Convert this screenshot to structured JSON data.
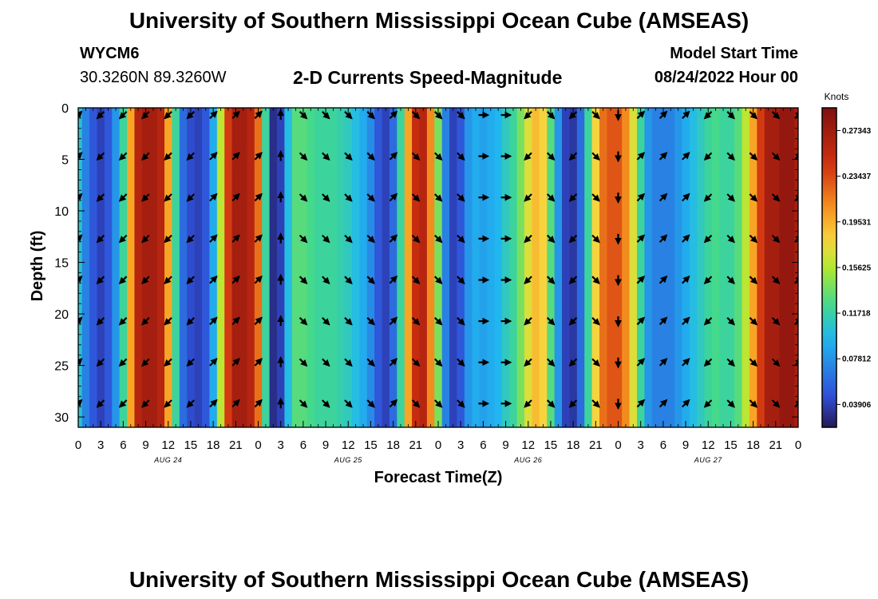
{
  "header": {
    "title": "University of Southern Mississippi Ocean Cube (AMSEAS)",
    "station_id": "WYCM6",
    "station_coords": "30.3260N  89.3260W",
    "subtitle": "2-D Currents Speed-Magnitude",
    "model_start_label": "Model Start Time",
    "model_start_value": "08/24/2022 Hour 00"
  },
  "footer": {
    "title": "University of Southern Mississippi Ocean Cube (AMSEAS)"
  },
  "chart_data": {
    "type": "heatmap",
    "xlabel": "Forecast Time(Z)",
    "ylabel": "Depth (ft)",
    "x_range_hours": [
      0,
      96
    ],
    "ylim": [
      0,
      31
    ],
    "x_ticks_hours": [
      0,
      3,
      6,
      9,
      12,
      15,
      18,
      21,
      24,
      27,
      30,
      33,
      36,
      39,
      42,
      45,
      48,
      51,
      54,
      57,
      60,
      63,
      66,
      69,
      72,
      75,
      78,
      81,
      84,
      87,
      90,
      93,
      96
    ],
    "x_tick_labels": [
      "0",
      "3",
      "6",
      "9",
      "12",
      "15",
      "18",
      "21",
      "0",
      "3",
      "6",
      "9",
      "12",
      "15",
      "18",
      "21",
      "0",
      "3",
      "6",
      "9",
      "12",
      "15",
      "18",
      "21",
      "0",
      "3",
      "6",
      "9",
      "12",
      "15",
      "18",
      "21",
      "0"
    ],
    "y_ticks": [
      0,
      5,
      10,
      15,
      20,
      25,
      30
    ],
    "y_tick_labels": [
      "0",
      "5",
      "10",
      "15",
      "20",
      "25",
      "30"
    ],
    "day_labels": [
      {
        "text": "AUG 24",
        "hour": 12
      },
      {
        "text": "AUG 25",
        "hour": 36
      },
      {
        "text": "AUG 26",
        "hour": 60
      },
      {
        "text": "AUG 27",
        "hour": 84
      }
    ],
    "colorbar": {
      "title": "Knots",
      "range": [
        0.0195,
        0.2929
      ],
      "tick_values": [
        0.03906,
        0.07812,
        0.11718,
        0.15625,
        0.19531,
        0.23437,
        0.27343
      ],
      "tick_labels": [
        "0.03906",
        "0.07812",
        "0.11718",
        "0.15625",
        "0.19531",
        "0.23437",
        "0.27343"
      ]
    },
    "speed_profile": {
      "hours": [
        0,
        1,
        2,
        3,
        4,
        5,
        6,
        7,
        8,
        9,
        10,
        11,
        12,
        13,
        14,
        15,
        16,
        17,
        18,
        19,
        20,
        21,
        22,
        23,
        24,
        25,
        26,
        27,
        28,
        29,
        30,
        31,
        32,
        33,
        34,
        35,
        36,
        37,
        38,
        39,
        40,
        41,
        42,
        43,
        44,
        45,
        46,
        47,
        48,
        49,
        50,
        51,
        52,
        53,
        54,
        55,
        56,
        57,
        58,
        59,
        60,
        61,
        62,
        63,
        64,
        65,
        66,
        67,
        68,
        69,
        70,
        71,
        72,
        73,
        74,
        75,
        76,
        77,
        78,
        79,
        80,
        81,
        82,
        83,
        84,
        85,
        86,
        87,
        88,
        89,
        90,
        91,
        92,
        93,
        94,
        95,
        96
      ],
      "knots": [
        0.105,
        0.07,
        0.05,
        0.04,
        0.05,
        0.08,
        0.12,
        0.2,
        0.26,
        0.27,
        0.27,
        0.26,
        0.2,
        0.12,
        0.06,
        0.045,
        0.04,
        0.05,
        0.09,
        0.16,
        0.24,
        0.27,
        0.27,
        0.26,
        0.22,
        0.12,
        0.03,
        0.04,
        0.1,
        0.13,
        0.13,
        0.125,
        0.12,
        0.12,
        0.12,
        0.115,
        0.11,
        0.1,
        0.09,
        0.075,
        0.05,
        0.04,
        0.06,
        0.12,
        0.2,
        0.25,
        0.26,
        0.21,
        0.14,
        0.07,
        0.04,
        0.05,
        0.08,
        0.09,
        0.085,
        0.09,
        0.095,
        0.11,
        0.12,
        0.14,
        0.17,
        0.19,
        0.18,
        0.13,
        0.08,
        0.04,
        0.035,
        0.06,
        0.12,
        0.18,
        0.22,
        0.23,
        0.23,
        0.21,
        0.17,
        0.12,
        0.08,
        0.07,
        0.07,
        0.07,
        0.08,
        0.09,
        0.1,
        0.11,
        0.12,
        0.125,
        0.12,
        0.12,
        0.13,
        0.16,
        0.2,
        0.24,
        0.27,
        0.27,
        0.28,
        0.28,
        0.27
      ]
    },
    "arrows": {
      "hours": [
        0,
        3,
        6,
        9,
        12,
        15,
        18,
        21,
        24,
        27,
        30,
        33,
        36,
        39,
        42,
        45,
        48,
        51,
        54,
        57,
        60,
        63,
        66,
        69,
        72,
        75,
        78,
        81,
        84,
        87,
        90,
        93,
        96
      ],
      "depths_ft": [
        0,
        4,
        8,
        12,
        16,
        20,
        24,
        28
      ],
      "direction": [
        "NE",
        "SW",
        "SW",
        "SW",
        "SW",
        "SW",
        "NE",
        "NE",
        "NE",
        "N",
        "SE",
        "SE",
        "SE",
        "SE",
        "NE",
        "SE",
        "SE",
        "SE",
        "E",
        "E",
        "SW",
        "SE",
        "SW",
        "SE",
        "S",
        "NE",
        "NE",
        "NE",
        "SW",
        "SE",
        "SE",
        "SE",
        "NE"
      ]
    }
  }
}
